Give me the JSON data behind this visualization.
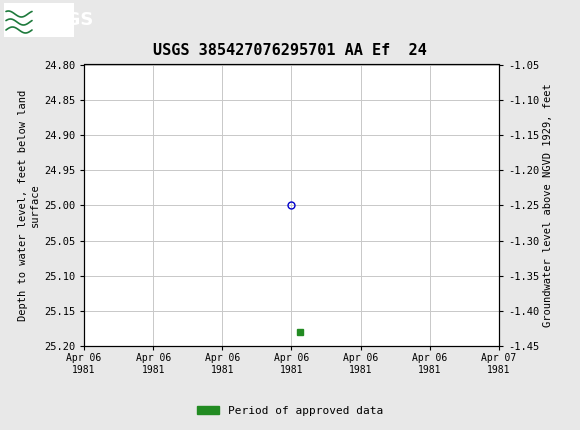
{
  "title": "USGS 385427076295701 AA Ef  24",
  "title_fontsize": 11,
  "header_bg_color": "#1e7a3c",
  "plot_bg_color": "#ffffff",
  "outer_bg_color": "#e8e8e8",
  "grid_color": "#c8c8c8",
  "ylabel_left": "Depth to water level, feet below land\nsurface",
  "ylabel_right": "Groundwater level above NGVD 1929, feet",
  "ylim_left": [
    24.8,
    25.2
  ],
  "ylim_right": [
    -1.05,
    -1.45
  ],
  "yticks_left": [
    24.8,
    24.85,
    24.9,
    24.95,
    25.0,
    25.05,
    25.1,
    25.15,
    25.2
  ],
  "yticks_right": [
    -1.05,
    -1.1,
    -1.15,
    -1.2,
    -1.25,
    -1.3,
    -1.35,
    -1.4,
    -1.45
  ],
  "data_point_x_hour": 12.0,
  "data_point_y": 25.0,
  "data_point_color": "#0000cc",
  "data_point_marker": "o",
  "data_point_markersize": 5,
  "approved_point_x_hour": 12.5,
  "approved_point_y": 25.18,
  "approved_color": "#228B22",
  "approved_marker": "s",
  "approved_markersize": 4,
  "xstart_day": 0,
  "xend_day": 1,
  "xtick_positions_hours": [
    0,
    4,
    8,
    12,
    16,
    20,
    24
  ],
  "xtick_labels": [
    "Apr 06\n1981",
    "Apr 06\n1981",
    "Apr 06\n1981",
    "Apr 06\n1981",
    "Apr 06\n1981",
    "Apr 06\n1981",
    "Apr 07\n1981"
  ],
  "legend_label": "Period of approved data",
  "legend_color": "#228B22",
  "font_family": "monospace"
}
